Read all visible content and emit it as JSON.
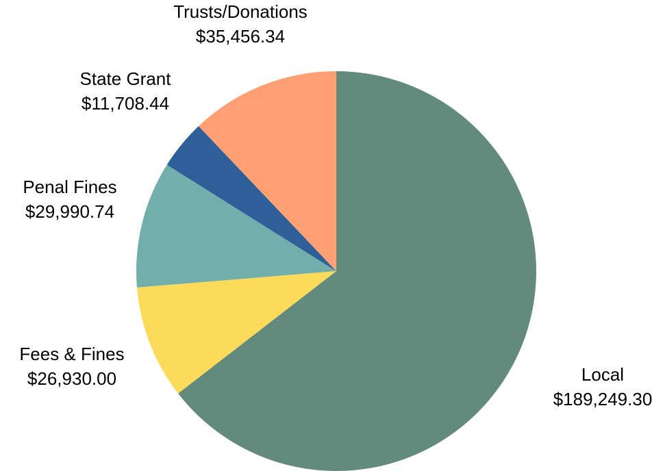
{
  "chart_data": {
    "type": "pie",
    "categories": [
      "Local",
      "Fees & Fines",
      "Penal Fines",
      "State Grant",
      "Trusts/Donations"
    ],
    "values": [
      189249.3,
      26930.0,
      29990.74,
      11708.44,
      35456.34
    ],
    "value_labels": [
      "$189,249.30",
      "$26,930.00",
      "$29,990.74",
      "$11,708.44",
      "$35,456.34"
    ],
    "colors": [
      "#628b7e",
      "#fddb5a",
      "#72aeab",
      "#2e5f98",
      "#ffa074"
    ]
  }
}
